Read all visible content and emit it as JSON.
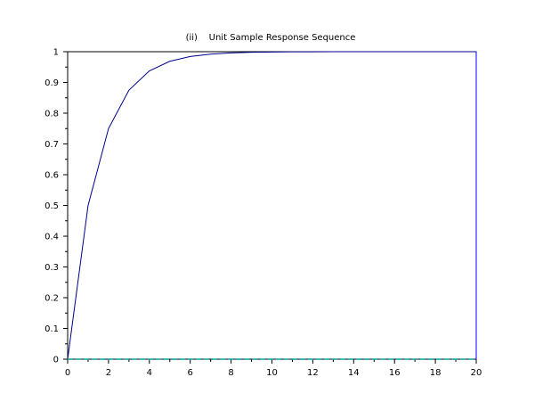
{
  "chart_data": {
    "type": "line",
    "title": "(ii)    Unit Sample Response Sequence",
    "xlabel": "",
    "ylabel": "",
    "xlim": [
      0,
      20
    ],
    "ylim": [
      0,
      1
    ],
    "x_ticks": [
      "0",
      "2",
      "4",
      "6",
      "8",
      "10",
      "12",
      "14",
      "16",
      "18",
      "20"
    ],
    "y_ticks": [
      "0",
      "0.1",
      "0.2",
      "0.3",
      "0.4",
      "0.5",
      "0.6",
      "0.7",
      "0.8",
      "0.9",
      "1"
    ],
    "grid": false,
    "series": [
      {
        "color": "#00008b",
        "style": "solid",
        "x": [
          0,
          1,
          2,
          3,
          4,
          5,
          6,
          7,
          8,
          9,
          10,
          11,
          12,
          13,
          14,
          15,
          16,
          17,
          18,
          19,
          20
        ],
        "y": [
          0,
          0.5,
          0.75,
          0.875,
          0.9375,
          0.96875,
          0.984375,
          0.9921875,
          0.99609375,
          0.998046875,
          0.9990234375,
          0.99951171875,
          0.999755859375,
          0.9998779296875,
          0.99993896484375,
          0.999969482421875,
          0.9999847412109375,
          0.9999923706054688,
          0.9999961853027344,
          0.9999980926513672,
          0.9999990463256836
        ]
      },
      {
        "color": "#00a0a0",
        "style": "dashed",
        "x": [
          0,
          1,
          2,
          3,
          4,
          5,
          6,
          7,
          8,
          9,
          10,
          11,
          12,
          13,
          14,
          15,
          16,
          17,
          18,
          19,
          20
        ],
        "y": [
          0,
          0,
          0,
          0,
          0,
          0,
          0,
          0,
          0,
          0,
          0,
          0,
          0,
          0,
          0,
          0,
          0,
          0,
          0,
          0,
          0
        ]
      }
    ]
  }
}
